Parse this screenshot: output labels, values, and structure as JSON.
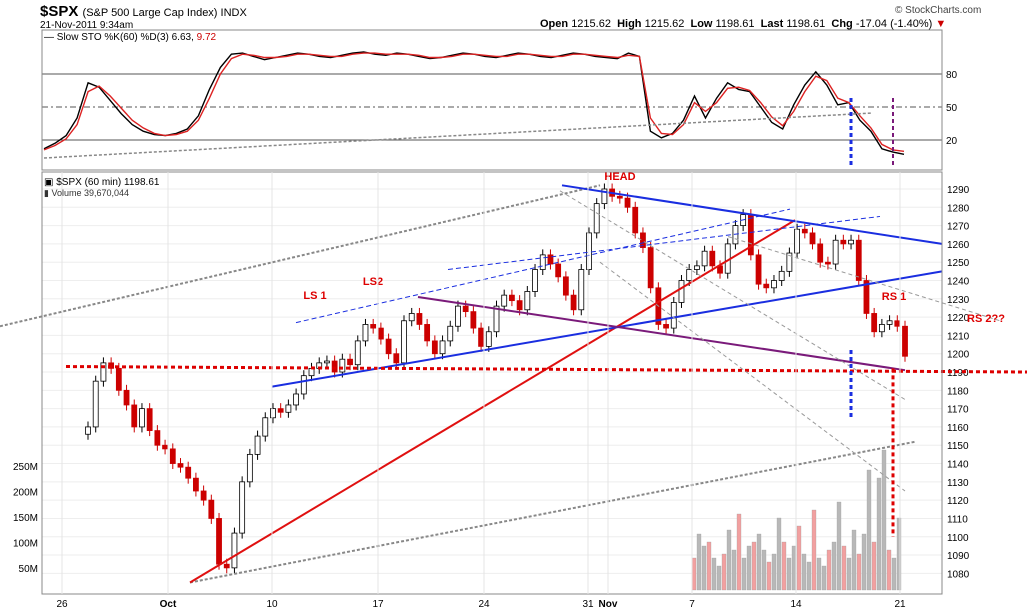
{
  "header": {
    "symbol": "$SPX",
    "description": "(S&P 500 Large Cap Index) INDX",
    "datetime": "21-Nov-2011 9:34am",
    "open_label": "Open",
    "open": "1215.62",
    "high_label": "High",
    "high": "1215.62",
    "low_label": "Low",
    "low": "1198.61",
    "last_label": "Last",
    "last": "1198.61",
    "chg_label": "Chg",
    "chg": "-17.04 (-1.40%)",
    "down_arrow": "▼",
    "brand": "© StockCharts.com"
  },
  "colors": {
    "up": "#000000",
    "down": "#cc0000",
    "trend_blue": "#1a2ee0",
    "trend_red": "#e01010",
    "trend_purple": "#7a1a7a",
    "neckline_red": "#dd0000",
    "stoch_k": "#000000",
    "stoch_d": "#dd2222",
    "grid": "#cccccc",
    "vol_up": "#b8b8b8",
    "vol_down": "#f2a0a0"
  },
  "chart_data": [
    {
      "type": "line",
      "title": "Slow STO %K(60) %D(3)",
      "k_label": "Slow STO %K(60) %D(3) 6.63,",
      "d_value": "9.72",
      "ylim": [
        0,
        100
      ],
      "yticks": [
        20,
        50,
        80
      ],
      "series": [
        {
          "name": "%K",
          "values": [
            12,
            17,
            24,
            40,
            72,
            68,
            56,
            44,
            34,
            28,
            25,
            24,
            26,
            30,
            42,
            66,
            86,
            98,
            99,
            96,
            93,
            95,
            97,
            99,
            98,
            96,
            95,
            97,
            99,
            100,
            98,
            97,
            99,
            98,
            96,
            94,
            95,
            97,
            99,
            98,
            96,
            95,
            97,
            99,
            98,
            96,
            95,
            97,
            99,
            98,
            96,
            95,
            94,
            99,
            96,
            28,
            22,
            26,
            38,
            60,
            40,
            58,
            72,
            66,
            64,
            50,
            36,
            30,
            52,
            70,
            82,
            70,
            52,
            54,
            38,
            28,
            12,
            9,
            7
          ]
        },
        {
          "name": "%D",
          "values": [
            11,
            15,
            21,
            34,
            64,
            69,
            60,
            49,
            38,
            31,
            26,
            24,
            25,
            28,
            38,
            58,
            80,
            94,
            98,
            97,
            95,
            95,
            96,
            98,
            98,
            97,
            96,
            96,
            98,
            99,
            99,
            98,
            98,
            98,
            97,
            95,
            95,
            96,
            98,
            98,
            97,
            96,
            96,
            98,
            98,
            97,
            96,
            96,
            98,
            98,
            97,
            96,
            95,
            97,
            96,
            40,
            26,
            25,
            34,
            54,
            46,
            54,
            67,
            68,
            65,
            54,
            41,
            33,
            46,
            64,
            78,
            74,
            58,
            54,
            42,
            31,
            16,
            11,
            9.7
          ]
        }
      ]
    },
    {
      "type": "candlestick",
      "title": "$SPX (60 min) 1198.61",
      "price_label": "$SPX (60 min) 1198.61",
      "volume_label": "Volume 39,670,044",
      "ylim": [
        1072,
        1296
      ],
      "yticks": [
        1080,
        1090,
        1100,
        1110,
        1120,
        1130,
        1140,
        1150,
        1160,
        1170,
        1180,
        1190,
        1200,
        1210,
        1220,
        1230,
        1240,
        1250,
        1260,
        1270,
        1280,
        1290
      ],
      "xticks": [
        "26",
        "Oct",
        "10",
        "17",
        "24",
        "31",
        "Nov",
        "7",
        "14",
        "21"
      ],
      "volume_ticks": [
        "50M",
        "100M",
        "150M",
        "200M",
        "250M"
      ],
      "closes": [
        1160,
        1185,
        1195,
        1192,
        1180,
        1172,
        1160,
        1170,
        1158,
        1150,
        1148,
        1140,
        1138,
        1132,
        1125,
        1120,
        1110,
        1085,
        1083,
        1102,
        1130,
        1145,
        1155,
        1165,
        1170,
        1168,
        1172,
        1178,
        1188,
        1192,
        1195,
        1196,
        1190,
        1197,
        1194,
        1207,
        1216,
        1214,
        1208,
        1200,
        1195,
        1218,
        1222,
        1216,
        1207,
        1200,
        1207,
        1215,
        1226,
        1223,
        1214,
        1204,
        1212,
        1226,
        1232,
        1229,
        1224,
        1234,
        1246,
        1254,
        1249,
        1242,
        1232,
        1224,
        1246,
        1266,
        1282,
        1290,
        1286,
        1285,
        1280,
        1266,
        1258,
        1236,
        1216,
        1214,
        1228,
        1240,
        1246,
        1248,
        1256,
        1248,
        1244,
        1260,
        1270,
        1276,
        1254,
        1238,
        1236,
        1240,
        1245,
        1255,
        1268,
        1266,
        1260,
        1250,
        1249,
        1262,
        1260,
        1262,
        1240,
        1222,
        1212,
        1216,
        1218,
        1215,
        1198.61
      ],
      "annotations": [
        "HEAD",
        "LS 1",
        "LS2",
        "RS 1",
        "RS 2??"
      ]
    }
  ]
}
